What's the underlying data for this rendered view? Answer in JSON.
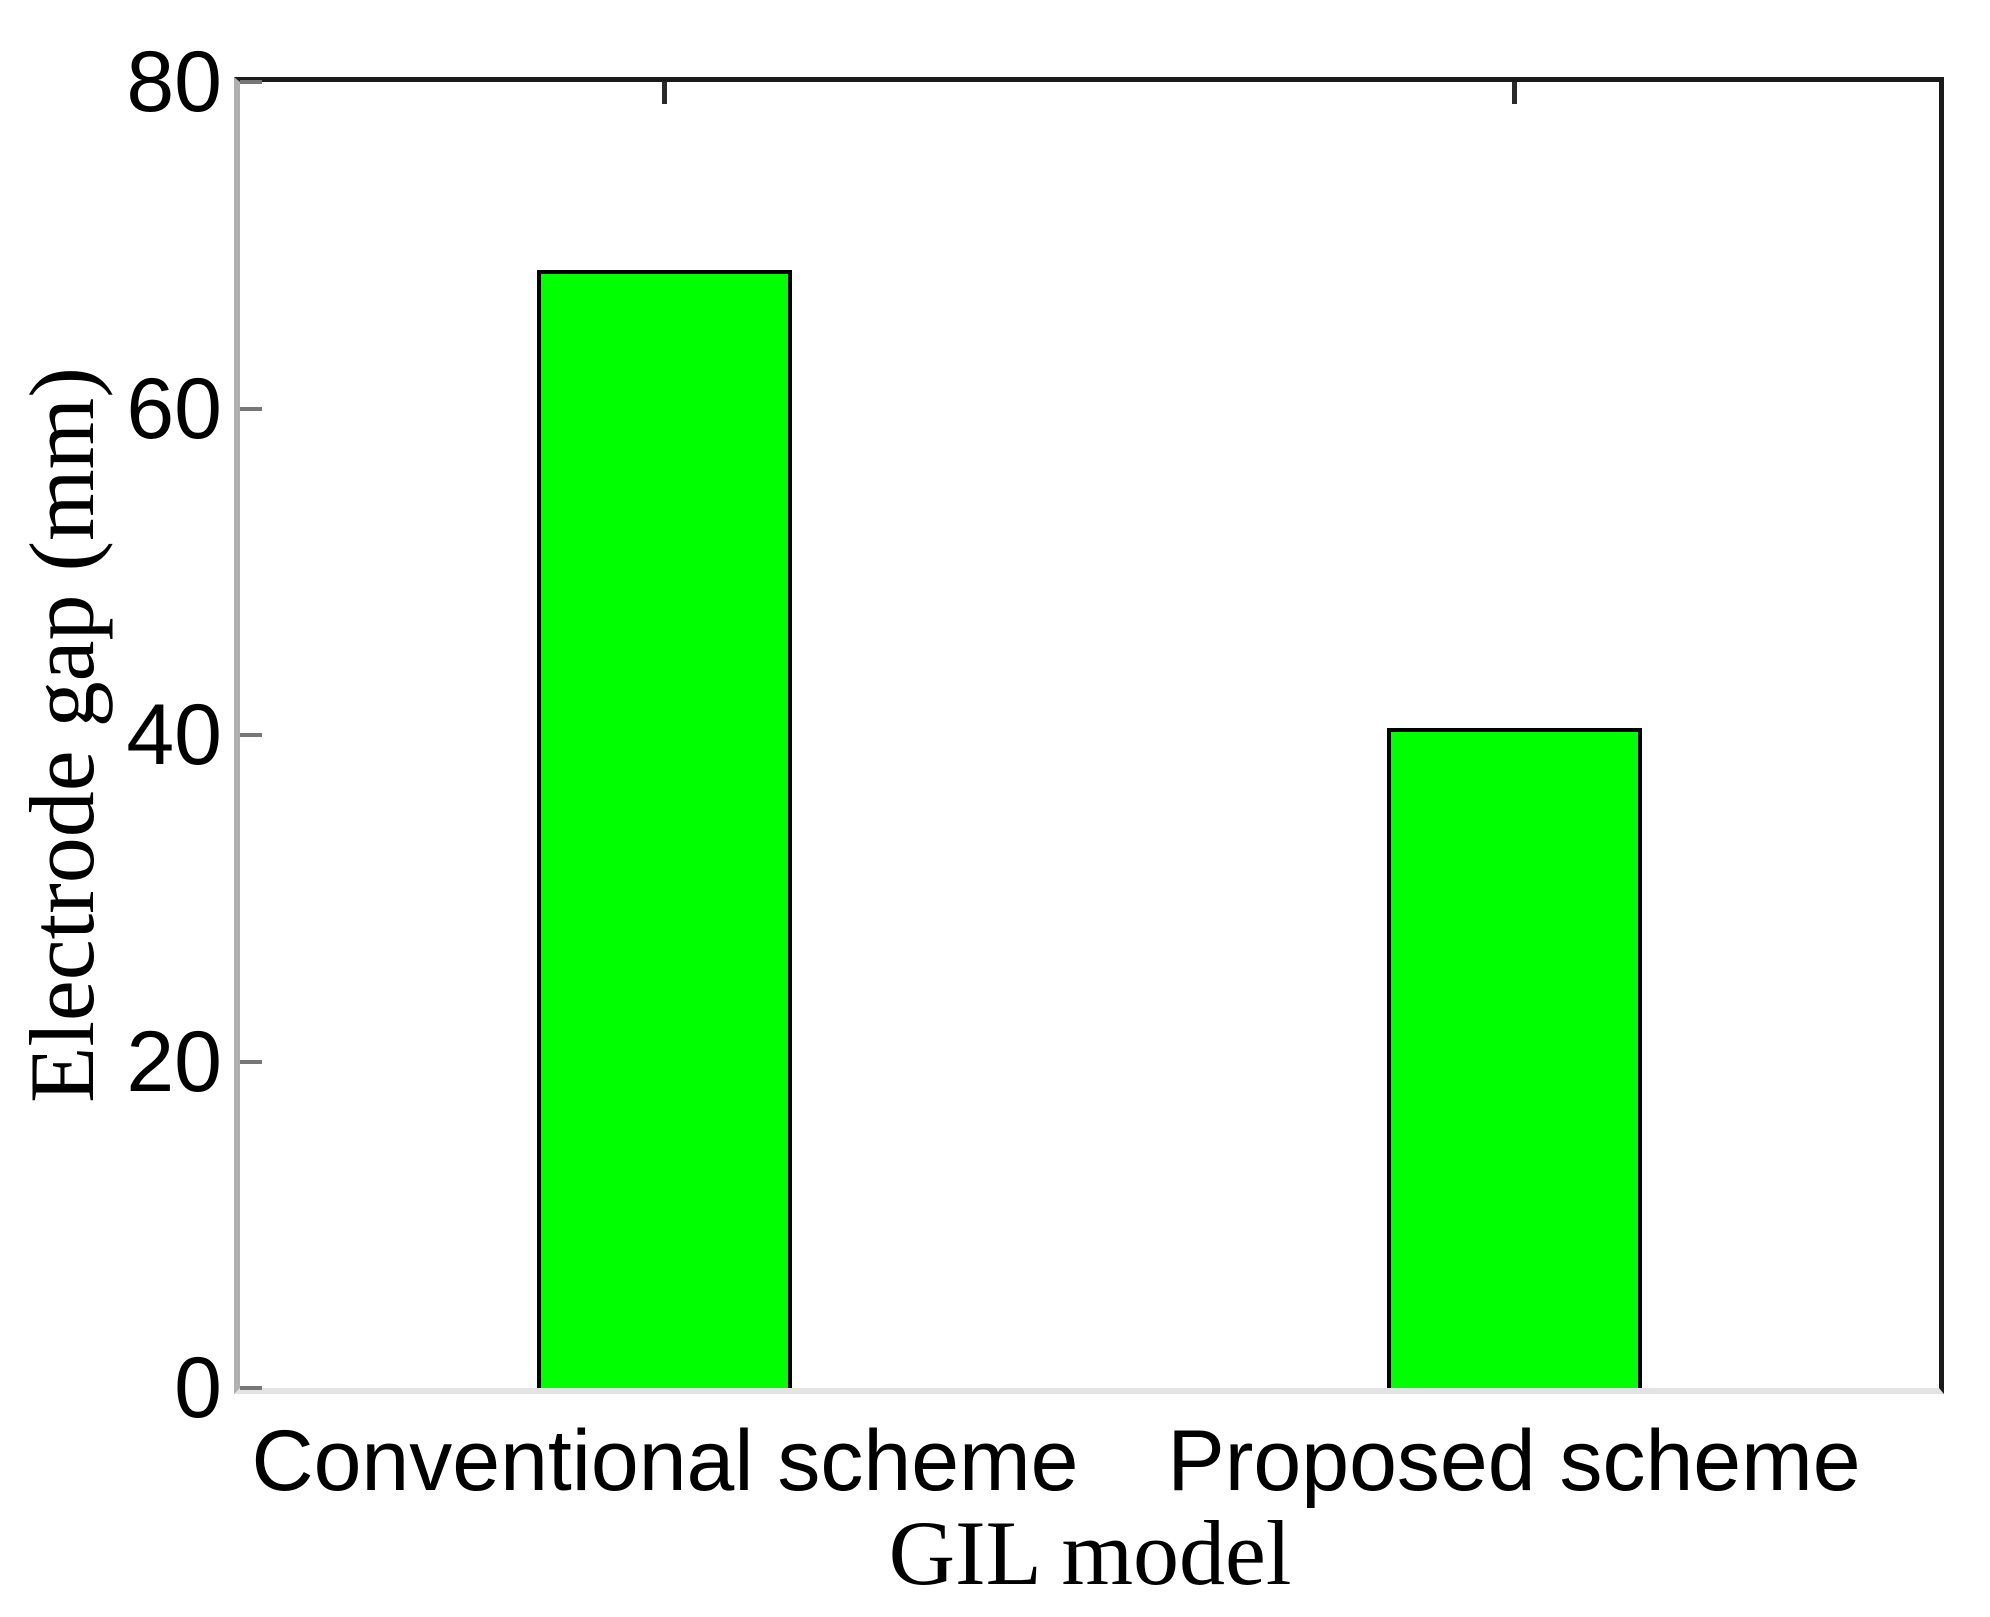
{
  "chart_data": {
    "type": "bar",
    "title": "",
    "categories": [
      "Conventional scheme",
      "Proposed scheme"
    ],
    "values": [
      68.5,
      40.4
    ],
    "xlabel": "GIL model",
    "ylabel": "Electrode gap (mm)",
    "ylim": [
      0,
      80
    ],
    "yticks": [
      0,
      20,
      40,
      60,
      80
    ],
    "grid": false,
    "legend": "none",
    "bar_width_fraction": 0.3
  },
  "colors": {
    "bar_fill": "#00FF00",
    "bar_edge": "#000000",
    "axis_dark": "#1a1a1a",
    "axis_left_gray": "#b0b0b0",
    "axis_bottom_light": "#e3e3e3",
    "ytick_mark": "#777777",
    "xtick_mark": "#2a2a2a",
    "text": "#000000",
    "background": "#ffffff"
  }
}
